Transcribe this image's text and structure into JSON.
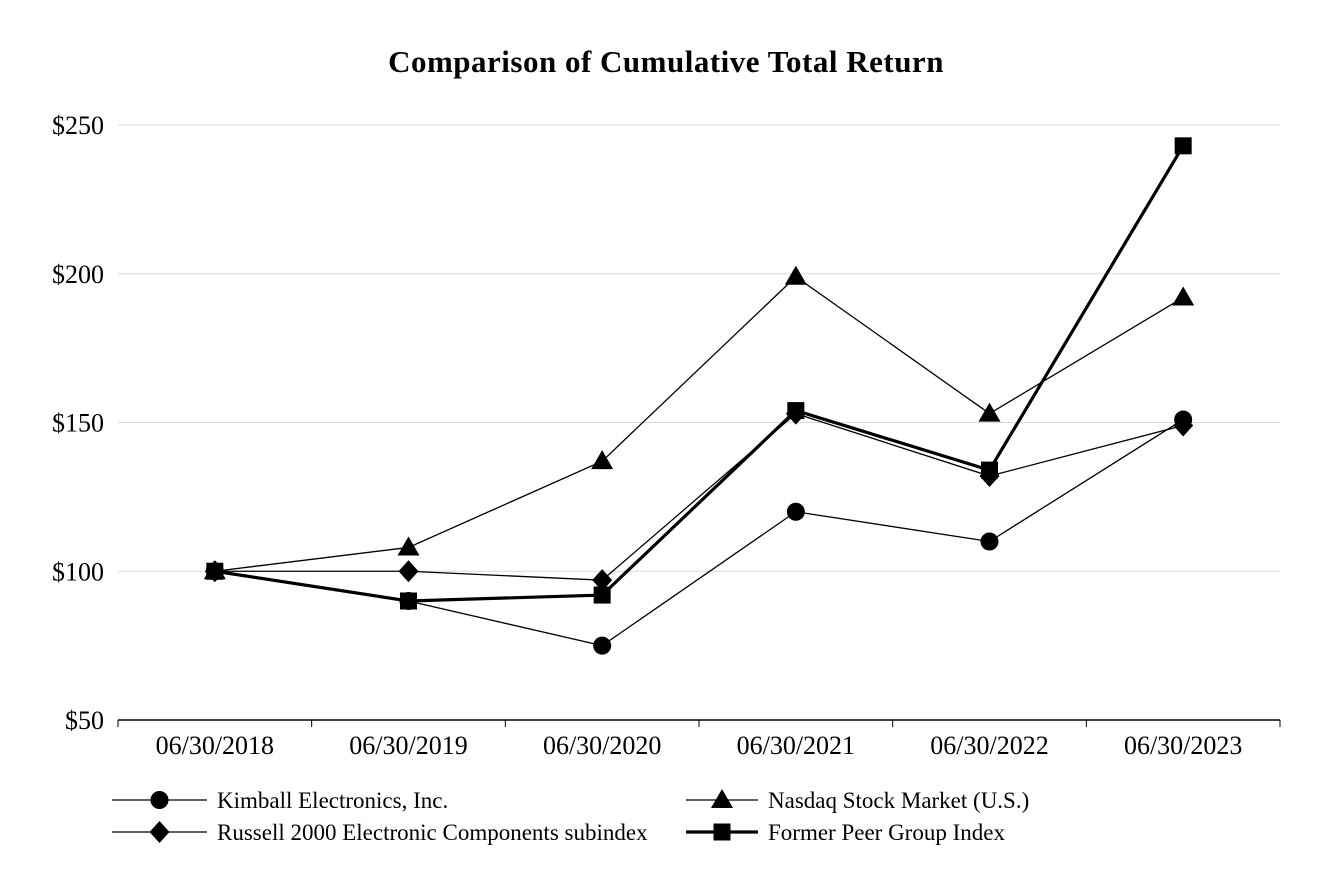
{
  "title": "Comparison of Cumulative Total Return",
  "chart_data": {
    "type": "line",
    "title": "Comparison of Cumulative Total Return",
    "categories": [
      "06/30/2018",
      "06/30/2019",
      "06/30/2020",
      "06/30/2021",
      "06/30/2022",
      "06/30/2023"
    ],
    "series": [
      {
        "key": "kimball",
        "name": "Kimball Electronics, Inc.",
        "marker": "circle",
        "line_width": 1.3,
        "values": [
          100,
          90,
          75,
          120,
          110,
          151
        ]
      },
      {
        "key": "nasdaq",
        "name": "Nasdaq Stock Market (U.S.)",
        "marker": "triangle",
        "line_width": 1.3,
        "values": [
          100,
          108,
          137,
          199,
          153,
          192
        ]
      },
      {
        "key": "russell",
        "name": "Russell 2000 Electronic Components subindex",
        "marker": "diamond",
        "line_width": 1.3,
        "values": [
          100,
          100,
          97,
          153,
          132,
          149
        ]
      },
      {
        "key": "peer-group",
        "name": "Former Peer Group Index",
        "marker": "square",
        "line_width": 3.2,
        "values": [
          100,
          90,
          92,
          154,
          134,
          243
        ]
      }
    ],
    "xlabel": "",
    "ylabel": "",
    "ylim": [
      50,
      250
    ],
    "ytick_step": 50,
    "ytick_labels": [
      "$50",
      "$100",
      "$150",
      "$200",
      "$250"
    ],
    "grid": "horizontal",
    "legend_position": "bottom",
    "colors": {
      "line": "#000000",
      "marker": "#000000",
      "grid": "#d9d9d9",
      "axis": "#000000",
      "text": "#000000",
      "background": "#ffffff"
    }
  }
}
